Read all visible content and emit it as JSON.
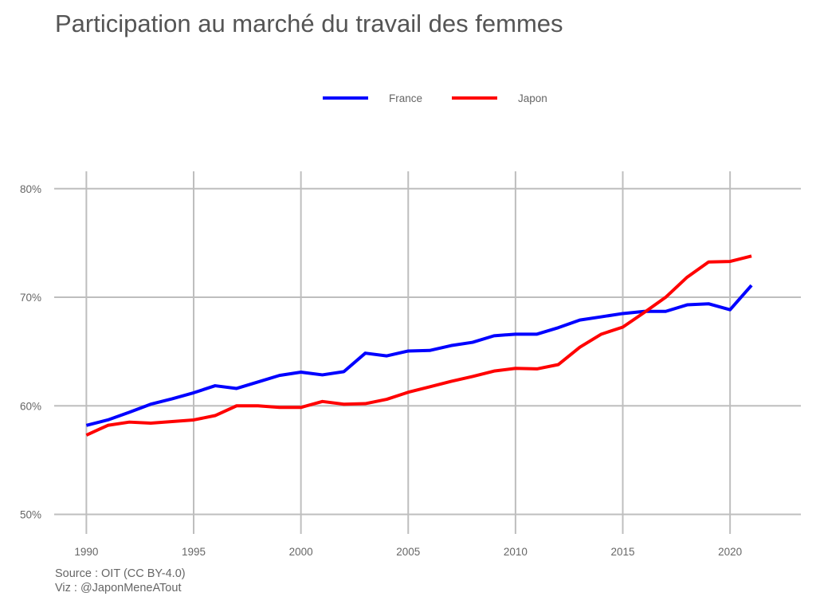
{
  "chart_data": {
    "type": "line",
    "title": "Participation au marché du travail des femmes",
    "xlabel": "",
    "ylabel": "",
    "x": [
      1990,
      1991,
      1992,
      1993,
      1994,
      1995,
      1996,
      1997,
      1998,
      1999,
      2000,
      2001,
      2002,
      2003,
      2004,
      2005,
      2006,
      2007,
      2008,
      2009,
      2010,
      2011,
      2012,
      2013,
      2014,
      2015,
      2016,
      2017,
      2018,
      2019,
      2020,
      2021
    ],
    "series": [
      {
        "name": "France",
        "color": "#0000ff",
        "values": [
          58.2,
          58.7,
          59.4,
          60.15,
          60.65,
          61.2,
          61.85,
          61.6,
          62.2,
          62.8,
          63.1,
          62.85,
          63.15,
          64.85,
          64.6,
          65.05,
          65.1,
          65.55,
          65.85,
          66.45,
          66.6,
          66.6,
          67.2,
          67.9,
          68.2,
          68.5,
          68.7,
          68.7,
          69.3,
          69.4,
          68.85,
          71.1
        ]
      },
      {
        "name": "Japon",
        "color": "#ff0000",
        "values": [
          57.3,
          58.2,
          58.5,
          58.4,
          58.55,
          58.7,
          59.1,
          60.0,
          60.0,
          59.85,
          59.85,
          60.4,
          60.15,
          60.2,
          60.6,
          61.25,
          61.75,
          62.25,
          62.7,
          63.2,
          63.45,
          63.4,
          63.8,
          65.4,
          66.6,
          67.25,
          68.6,
          70.0,
          71.85,
          73.25,
          73.3,
          73.8
        ]
      }
    ],
    "xticks": [
      "1990",
      "1995",
      "2000",
      "2005",
      "2010",
      "2015",
      "2020"
    ],
    "yticks": [
      "50%",
      "60%",
      "70%",
      "80%"
    ],
    "ytick_values": [
      50,
      60,
      70,
      80
    ],
    "xlim": [
      1988.5,
      2023.3
    ],
    "ylim": [
      48.2,
      81.6
    ],
    "grid": true,
    "legend": "top-center",
    "grid_color": "#bebebe"
  },
  "captions": {
    "source": "Source : OIT (CC BY-4.0)",
    "viz": "Viz : @JaponMeneATout"
  }
}
